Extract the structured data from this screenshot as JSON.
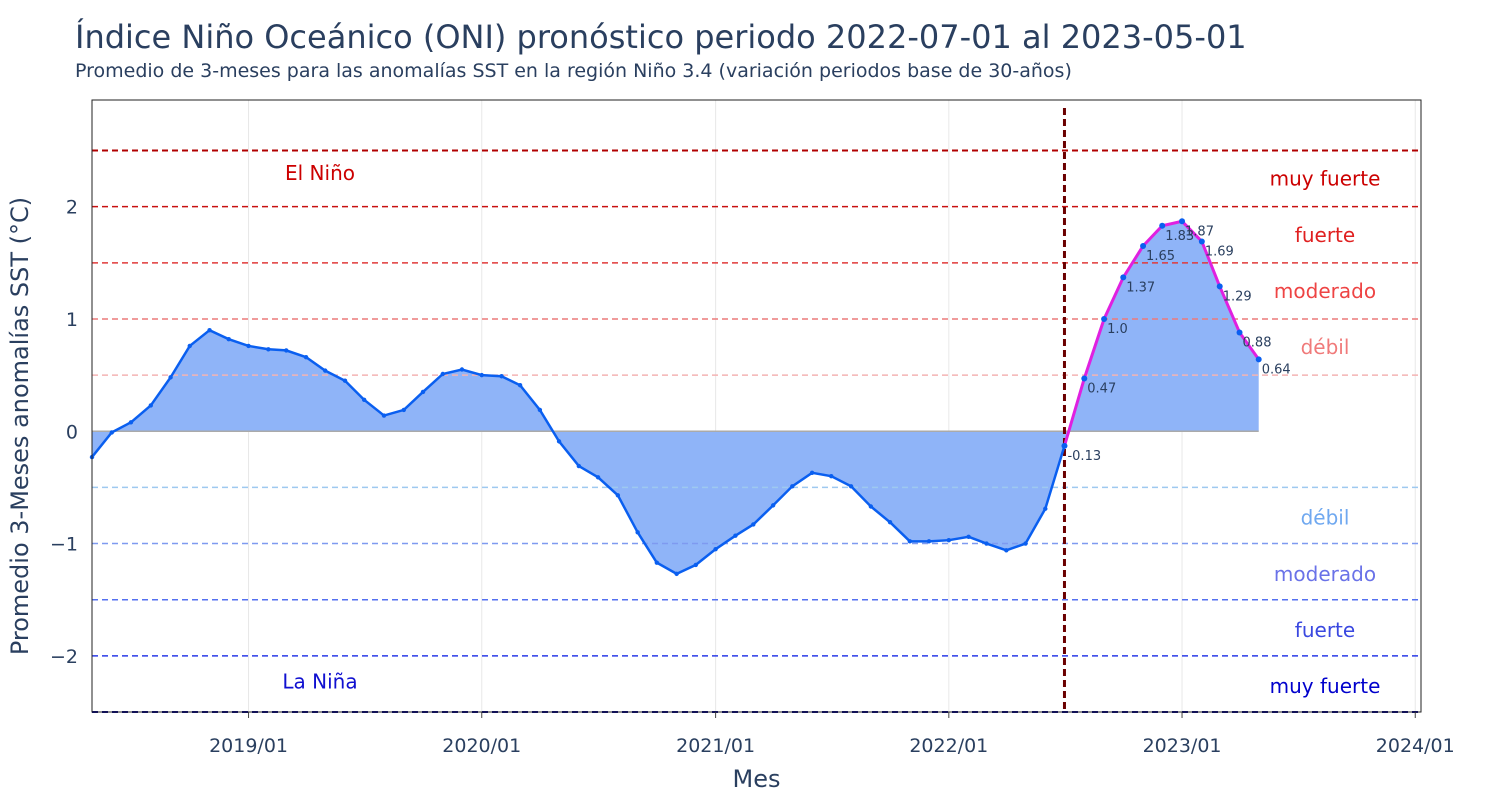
{
  "chart_data": {
    "type": "area",
    "title": "Índice Niño Oceánico (ONI) pronóstico periodo 2022-07-01 al 2023-05-01",
    "subtitle": "Promedio de 3-meses para las anomalías SST en la región Niño 3.4 (variación periodos base de 30-años)",
    "xlabel": "Mes",
    "ylabel": "Promedio 3-Meses anomalías SST (°C)",
    "x_ticks": [
      "2019/01",
      "2020/01",
      "2021/01",
      "2022/01",
      "2023/01",
      "2024/01"
    ],
    "y_ticks": [
      "−2",
      "−1",
      "0",
      "1",
      "2"
    ],
    "ylim": [
      -2.5,
      2.95
    ],
    "xlim": [
      "2018-05-01",
      "2024-01-10"
    ],
    "grid": true,
    "forecast_start": "2022-07-01",
    "series": [
      {
        "role": "observed",
        "color": "#0a5ff0",
        "x": [
          "2018-05-01",
          "2018-06-01",
          "2018-07-01",
          "2018-08-01",
          "2018-09-01",
          "2018-10-01",
          "2018-11-01",
          "2018-12-01",
          "2019-01-01",
          "2019-02-01",
          "2019-03-01",
          "2019-04-01",
          "2019-05-01",
          "2019-06-01",
          "2019-07-01",
          "2019-08-01",
          "2019-09-01",
          "2019-10-01",
          "2019-11-01",
          "2019-12-01",
          "2020-01-01",
          "2020-02-01",
          "2020-03-01",
          "2020-04-01",
          "2020-05-01",
          "2020-06-01",
          "2020-07-01",
          "2020-08-01",
          "2020-09-01",
          "2020-10-01",
          "2020-11-01",
          "2020-12-01",
          "2021-01-01",
          "2021-02-01",
          "2021-03-01",
          "2021-04-01",
          "2021-05-01",
          "2021-06-01",
          "2021-07-01",
          "2021-08-01",
          "2021-09-01",
          "2021-10-01",
          "2021-11-01",
          "2021-12-01",
          "2022-01-01",
          "2022-02-01",
          "2022-03-01",
          "2022-04-01",
          "2022-05-01",
          "2022-06-01",
          "2022-07-01"
        ],
        "y": [
          -0.23,
          -0.01,
          0.08,
          0.23,
          0.48,
          0.76,
          0.9,
          0.82,
          0.76,
          0.73,
          0.72,
          0.66,
          0.54,
          0.45,
          0.28,
          0.14,
          0.19,
          0.35,
          0.51,
          0.55,
          0.5,
          0.49,
          0.41,
          0.19,
          -0.09,
          -0.31,
          -0.41,
          -0.57,
          -0.9,
          -1.17,
          -1.27,
          -1.19,
          -1.05,
          -0.93,
          -0.83,
          -0.66,
          -0.49,
          -0.37,
          -0.4,
          -0.49,
          -0.67,
          -0.81,
          -0.98,
          -0.98,
          -0.97,
          -0.94,
          -1.0,
          -1.06,
          -1.0,
          -0.69,
          -0.13
        ]
      },
      {
        "role": "forecast",
        "color": "#e020e0",
        "x": [
          "2022-07-01",
          "2022-08-01",
          "2022-09-01",
          "2022-10-01",
          "2022-11-01",
          "2022-12-01",
          "2023-01-01",
          "2023-02-01",
          "2023-03-01",
          "2023-04-01",
          "2023-05-01"
        ],
        "y": [
          -0.13,
          0.47,
          1.0,
          1.37,
          1.65,
          1.83,
          1.87,
          1.69,
          1.29,
          0.88,
          0.64
        ],
        "labels": [
          "-0.13",
          "0.47",
          "1.0",
          "1.37",
          "1.65",
          "1.83",
          "1.87",
          "1.69",
          "1.29",
          "0.88",
          "0.64"
        ]
      }
    ],
    "threshold_lines": [
      {
        "y": 2.5,
        "color": "#b00000"
      },
      {
        "y": 2.0,
        "color": "#c81010"
      },
      {
        "y": 1.5,
        "color": "#e03a3a"
      },
      {
        "y": 1.0,
        "color": "#ec7a7a"
      },
      {
        "y": 0.5,
        "color": "#f4b3b3"
      },
      {
        "y": -0.5,
        "color": "#9ec9f0"
      },
      {
        "y": -1.0,
        "color": "#7f9af0"
      },
      {
        "y": -1.5,
        "color": "#5470f0"
      },
      {
        "y": -2.0,
        "color": "#2a3ae8"
      },
      {
        "y": -2.5,
        "color": "#00008b"
      }
    ],
    "annotations": {
      "el_nino": {
        "text": "El Niño",
        "y": 2.3,
        "color": "#cc0000"
      },
      "la_nina": {
        "text": "La Niña",
        "y": -2.23,
        "color": "#1010d0"
      },
      "right": [
        {
          "text": "muy fuerte",
          "y": 2.25,
          "color": "#cc0000"
        },
        {
          "text": "fuerte",
          "y": 1.75,
          "color": "#e02020"
        },
        {
          "text": "moderado",
          "y": 1.25,
          "color": "#ee4444"
        },
        {
          "text": "débil",
          "y": 0.75,
          "color": "#f07a7a"
        },
        {
          "text": "débil",
          "y": -0.77,
          "color": "#6fa8f0"
        },
        {
          "text": "moderado",
          "y": -1.27,
          "color": "#6a72e8"
        },
        {
          "text": "fuerte",
          "y": -1.77,
          "color": "#3a48e0"
        },
        {
          "text": "muy fuerte",
          "y": -2.27,
          "color": "#0000cc"
        }
      ]
    },
    "colors": {
      "fill": "#8fb4f8",
      "zero_line": "#aaaaaa",
      "forecast_marker": "#6b0000",
      "text": "#2a3f5f",
      "grid": "#e8e8e8"
    }
  }
}
